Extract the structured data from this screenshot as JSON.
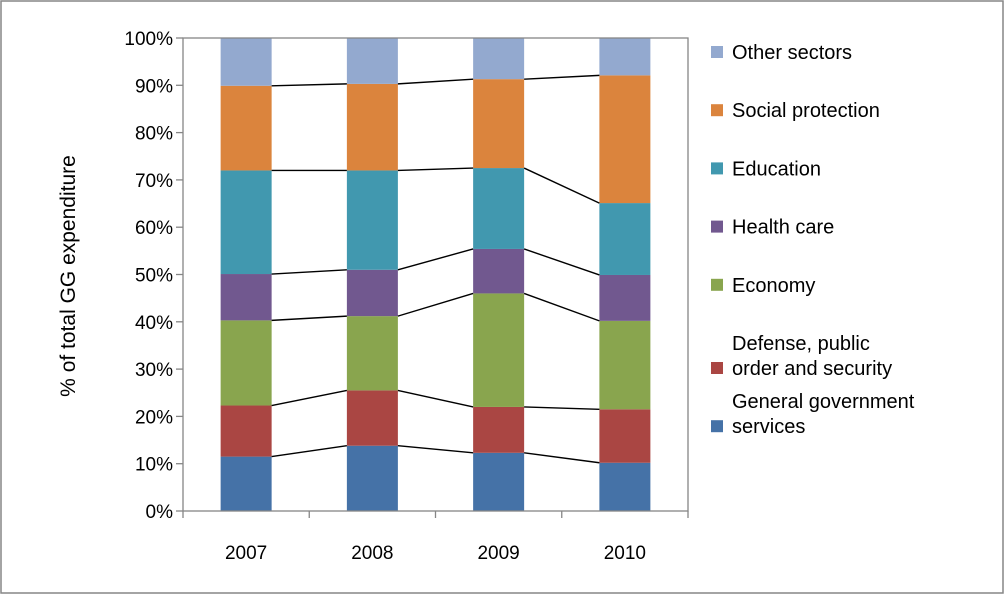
{
  "chart_data": {
    "type": "bar",
    "stacked": true,
    "percent_stacked": true,
    "categories": [
      "2007",
      "2008",
      "2009",
      "2010"
    ],
    "ylabel": "% of total GG expenditure",
    "xlabel": "",
    "ylim": [
      0,
      100
    ],
    "y_ticks": [
      "0%",
      "10%",
      "20%",
      "30%",
      "40%",
      "50%",
      "60%",
      "70%",
      "80%",
      "90%",
      "100%"
    ],
    "series_lines": true,
    "legend_position": "right",
    "grid": false,
    "series": [
      {
        "name": "General government services",
        "legend_lines": [
          "General government",
          "services"
        ],
        "color": "#4572a7",
        "values": [
          11.5,
          13.8,
          12.3,
          10.2
        ]
      },
      {
        "name": "Defense, public order and security",
        "legend_lines": [
          "Defense, public",
          "order and security"
        ],
        "color": "#aa4643",
        "values": [
          10.8,
          11.7,
          9.7,
          11.3
        ]
      },
      {
        "name": "Economy",
        "legend_lines": [
          "Economy"
        ],
        "color": "#89a54e",
        "values": [
          18.0,
          15.7,
          24.0,
          18.7
        ]
      },
      {
        "name": "Health care",
        "legend_lines": [
          "Health care"
        ],
        "color": "#71588f",
        "values": [
          9.8,
          9.8,
          9.4,
          9.7
        ]
      },
      {
        "name": "Education",
        "legend_lines": [
          "Education"
        ],
        "color": "#4198af",
        "values": [
          21.9,
          21.0,
          17.1,
          15.2
        ]
      },
      {
        "name": "Social protection",
        "legend_lines": [
          "Social protection"
        ],
        "color": "#db843d",
        "values": [
          17.9,
          18.3,
          18.8,
          27.0
        ]
      },
      {
        "name": "Other sectors",
        "legend_lines": [
          "Other sectors"
        ],
        "color": "#93a9cf",
        "values": [
          10.1,
          9.7,
          8.7,
          7.9
        ]
      }
    ]
  }
}
